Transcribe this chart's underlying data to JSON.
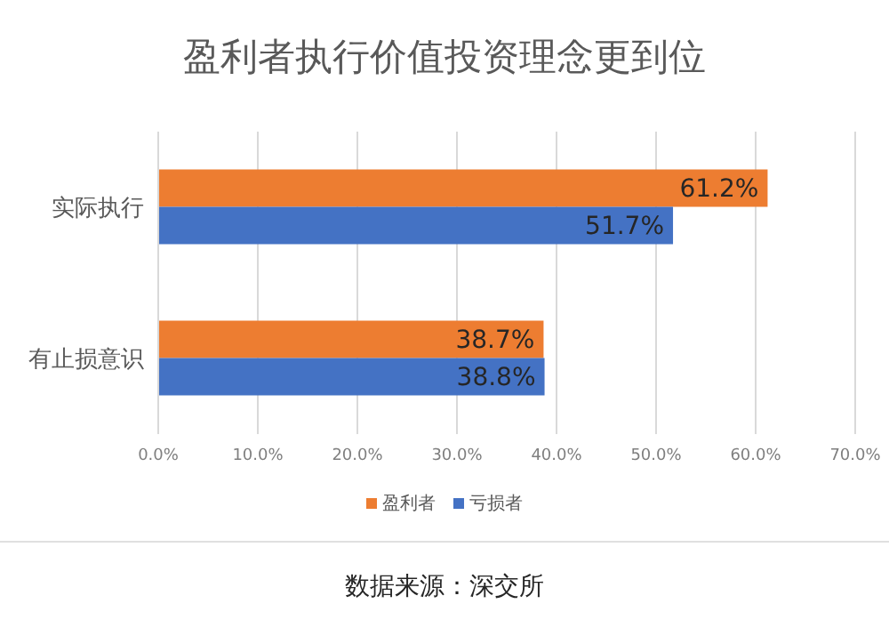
{
  "chart_data": {
    "type": "bar",
    "orientation": "horizontal",
    "title": "盈利者执行价值投资理念更到位",
    "categories": [
      "实际执行",
      "有止损意识"
    ],
    "series": [
      {
        "name": "盈利者",
        "color": "#ed7d31",
        "values": [
          61.2,
          38.7
        ],
        "value_labels": [
          "61.2%",
          "38.7%"
        ]
      },
      {
        "name": "亏损者",
        "color": "#4472c4",
        "values": [
          51.7,
          38.8
        ],
        "value_labels": [
          "51.7%",
          "38.8%"
        ]
      }
    ],
    "xlim": [
      0,
      70
    ],
    "xticks": [
      {
        "value": 0,
        "label": "0.0%"
      },
      {
        "value": 10,
        "label": "10.0%"
      },
      {
        "value": 20,
        "label": "20.0%"
      },
      {
        "value": 30,
        "label": "30.0%"
      },
      {
        "value": 40,
        "label": "40.0%"
      },
      {
        "value": 50,
        "label": "50.0%"
      },
      {
        "value": 60,
        "label": "60.0%"
      },
      {
        "value": 70,
        "label": "70.0%"
      }
    ],
    "grid": "x",
    "legend": "bottom",
    "annotations": [
      "数据来源：深交所"
    ]
  }
}
